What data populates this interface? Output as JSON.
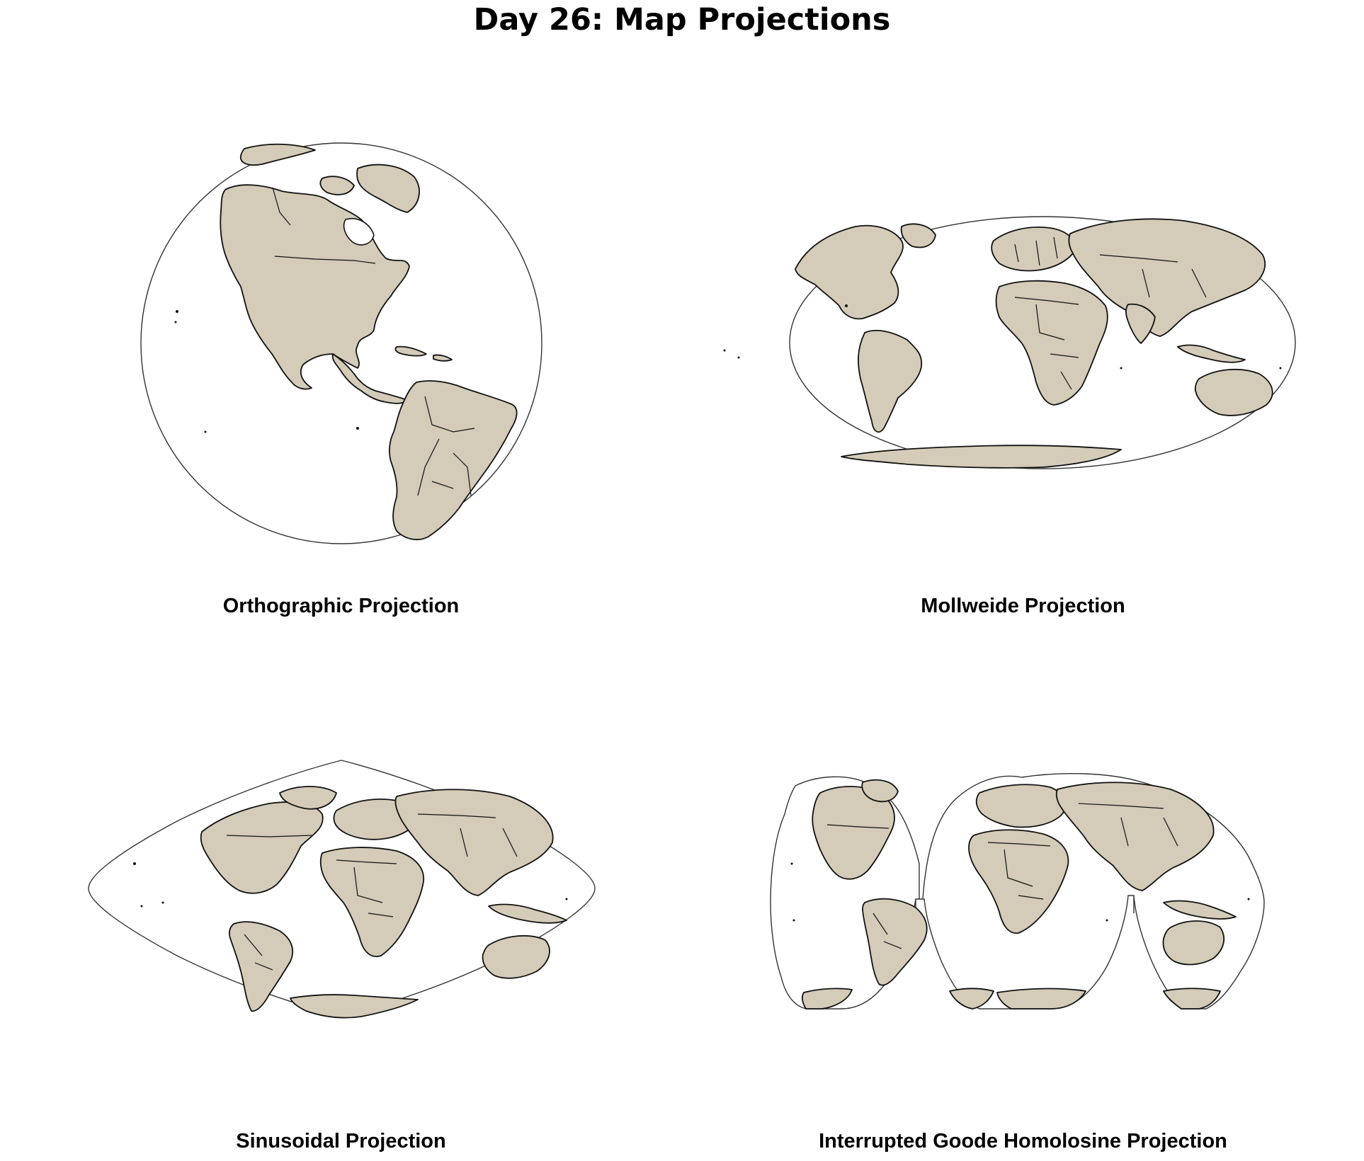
{
  "title": "Day 26: Map Projections",
  "colors": {
    "land": "#d4cbb8",
    "border": "#111111",
    "ocean": "#ffffff"
  },
  "panels": [
    {
      "id": "orthographic",
      "title": "Orthographic Projection"
    },
    {
      "id": "mollweide",
      "title": "Mollweide Projection"
    },
    {
      "id": "sinusoidal",
      "title": "Sinusoidal Projection"
    },
    {
      "id": "goode",
      "title": "Interrupted Goode Homolosine Projection"
    }
  ]
}
